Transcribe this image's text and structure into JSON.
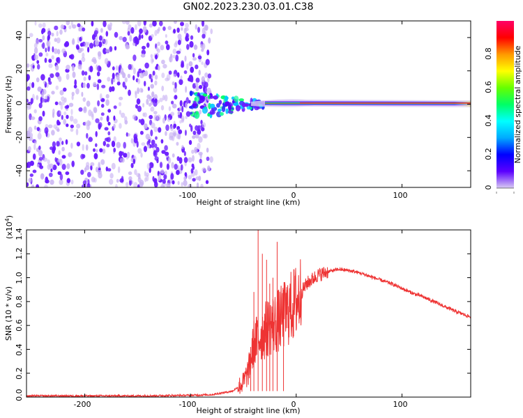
{
  "figure": {
    "title": "GN02.2023.230.03.01.C38"
  },
  "chart_data": [
    {
      "type": "heatmap",
      "title": "",
      "xlabel": "Height of straight line (km)",
      "ylabel": "Frequency (Hz)",
      "xlim": [
        -255,
        165
      ],
      "ylim": [
        -50,
        50
      ],
      "xticks": [
        -200,
        -100,
        0,
        100
      ],
      "yticks": [
        -40,
        -20,
        0,
        20,
        40
      ],
      "colorbar": {
        "label": "Normalized spectral amplitude",
        "range": [
          0.0,
          1.0
        ],
        "ticks": [
          0.0,
          0.2,
          0.4,
          0.6,
          0.8
        ],
        "colors": [
          "#d9ccf2",
          "#5b00ff",
          "#0000ff",
          "#00aaff",
          "#00ffff",
          "#00ff66",
          "#66ff00",
          "#ffff00",
          "#ff9900",
          "#ff0000",
          "#ff0066"
        ]
      },
      "regions": [
        {
          "name": "noise",
          "x": [
            -255,
            -80
          ],
          "freq": [
            -50,
            50
          ],
          "amplitude": [
            0.05,
            0.25
          ]
        },
        {
          "name": "onset",
          "x": [
            -100,
            -30
          ],
          "freq": [
            -15,
            8
          ],
          "amplitude": [
            0.2,
            0.6
          ]
        },
        {
          "name": "signal",
          "x": [
            -30,
            165
          ],
          "freq": [
            -3,
            3
          ],
          "amplitude": [
            0.6,
            1.0
          ]
        }
      ],
      "grid": false
    },
    {
      "type": "line",
      "title": "",
      "xlabel": "Height of straight line (km)",
      "ylabel": "SNR (10 * v/v)",
      "y_multiplier": "(x10",
      "y_multiplier_exp": "4",
      "y_multiplier_close": ")",
      "xlim": [
        -255,
        165
      ],
      "ylim": [
        0.0,
        1.4
      ],
      "xticks": [
        -200,
        -100,
        0,
        100
      ],
      "yticks": [
        0.0,
        0.2,
        0.4,
        0.6,
        0.8,
        1.0,
        1.2,
        1.4
      ],
      "ytick_labels": [
        "0.0",
        "0.2",
        "0.4",
        "0.6",
        "0.8",
        "1.0",
        "1.2",
        "1.4"
      ],
      "color": "#ee3333",
      "x": [
        -255,
        -200,
        -150,
        -100,
        -80,
        -60,
        -50,
        -45,
        -40,
        -35,
        -30,
        -25,
        -20,
        -15,
        -10,
        -5,
        0,
        5,
        10,
        20,
        30,
        40,
        50,
        60,
        70,
        80,
        90,
        100,
        110,
        120,
        130,
        140,
        150,
        165
      ],
      "y": [
        0.01,
        0.01,
        0.01,
        0.015,
        0.02,
        0.05,
        0.12,
        0.22,
        0.45,
        0.5,
        0.55,
        0.6,
        0.62,
        0.65,
        0.7,
        0.75,
        0.8,
        0.88,
        0.95,
        1.02,
        1.05,
        1.07,
        1.06,
        1.04,
        1.01,
        0.98,
        0.95,
        0.91,
        0.87,
        0.84,
        0.8,
        0.76,
        0.72,
        0.67
      ],
      "spikes": [
        {
          "x": -36,
          "y": 1.42
        },
        {
          "x": -32,
          "y": 1.2
        },
        {
          "x": -28,
          "y": 1.15
        },
        {
          "x": -22,
          "y": 1.0
        },
        {
          "x": -18,
          "y": 1.3
        },
        {
          "x": -43,
          "y": 0.42
        },
        {
          "x": -40,
          "y": 0.88
        },
        {
          "x": -25,
          "y": 0.95
        },
        {
          "x": -12,
          "y": 0.9
        }
      ],
      "grid": false
    }
  ]
}
